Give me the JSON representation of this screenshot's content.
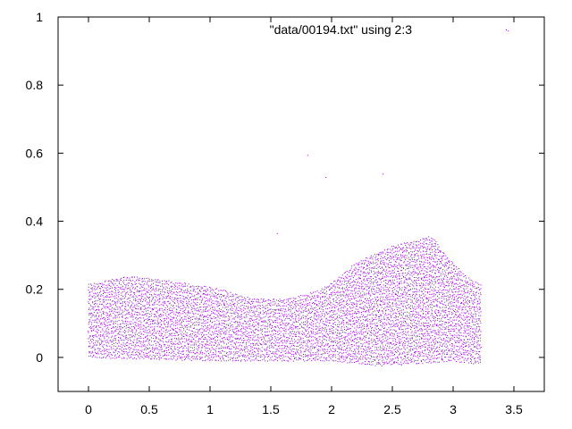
{
  "chart_data": {
    "type": "scatter",
    "title": "",
    "xlabel": "",
    "ylabel": "",
    "xlim": [
      -0.25,
      3.75
    ],
    "ylim": [
      -0.1,
      1.0
    ],
    "grid": false,
    "legend_position": "top-right",
    "x_ticks": [
      "0",
      "0.5",
      "1",
      "1.5",
      "2",
      "2.5",
      "3",
      "3.5"
    ],
    "y_ticks": [
      "0",
      "0.2",
      "0.4",
      "0.6",
      "0.8",
      "1"
    ],
    "x_tick_values": [
      0,
      0.5,
      1,
      1.5,
      2,
      2.5,
      3,
      3.5
    ],
    "y_tick_values": [
      0,
      0.2,
      0.4,
      0.6,
      0.8,
      1
    ],
    "series": [
      {
        "name": "\"data/00194.txt\" using 2:3",
        "color": "#9400d3",
        "x_range": [
          0,
          3.22
        ],
        "upper_envelope": [
          [
            0.0,
            0.22
          ],
          [
            0.1,
            0.225
          ],
          [
            0.2,
            0.235
          ],
          [
            0.3,
            0.24
          ],
          [
            0.4,
            0.238
          ],
          [
            0.5,
            0.235
          ],
          [
            0.6,
            0.232
          ],
          [
            0.7,
            0.225
          ],
          [
            0.8,
            0.22
          ],
          [
            0.9,
            0.215
          ],
          [
            1.0,
            0.21
          ],
          [
            1.1,
            0.2
          ],
          [
            1.2,
            0.19
          ],
          [
            1.3,
            0.18
          ],
          [
            1.4,
            0.175
          ],
          [
            1.5,
            0.175
          ],
          [
            1.6,
            0.175
          ],
          [
            1.7,
            0.18
          ],
          [
            1.8,
            0.19
          ],
          [
            1.9,
            0.2
          ],
          [
            2.0,
            0.225
          ],
          [
            2.1,
            0.25
          ],
          [
            2.2,
            0.28
          ],
          [
            2.3,
            0.3
          ],
          [
            2.4,
            0.315
          ],
          [
            2.5,
            0.33
          ],
          [
            2.6,
            0.34
          ],
          [
            2.7,
            0.345
          ],
          [
            2.8,
            0.36
          ],
          [
            2.85,
            0.35
          ],
          [
            2.9,
            0.32
          ],
          [
            3.0,
            0.28
          ],
          [
            3.1,
            0.24
          ],
          [
            3.2,
            0.22
          ]
        ],
        "lower_envelope": [
          [
            0.0,
            0.0
          ],
          [
            0.5,
            -0.005
          ],
          [
            1.0,
            -0.01
          ],
          [
            1.5,
            -0.01
          ],
          [
            2.0,
            -0.01
          ],
          [
            2.4,
            -0.025
          ],
          [
            2.6,
            -0.02
          ],
          [
            3.0,
            -0.01
          ],
          [
            3.22,
            -0.02
          ]
        ],
        "outliers": [
          [
            1.55,
            0.365
          ],
          [
            1.8,
            0.595
          ],
          [
            1.95,
            0.53
          ],
          [
            2.42,
            0.54
          ],
          [
            3.45,
            0.96
          ]
        ]
      }
    ]
  }
}
